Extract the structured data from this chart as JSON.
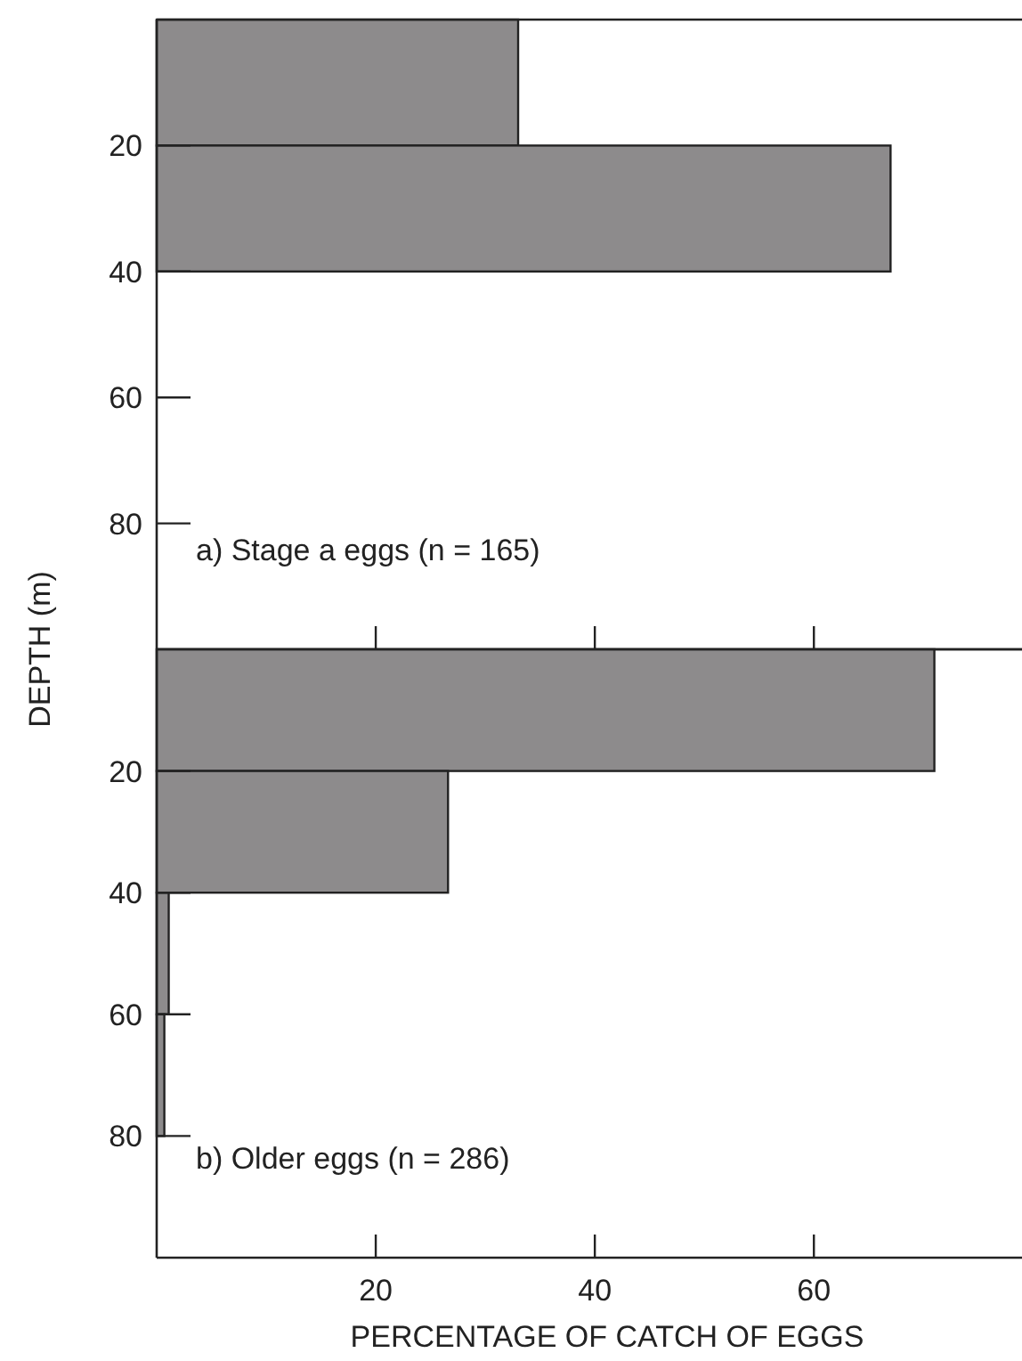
{
  "chart_data": [
    {
      "type": "histogram",
      "orientation": "horizontal",
      "bins": [
        0,
        20,
        40,
        60,
        80,
        100
      ],
      "values": [
        33,
        67,
        0,
        0,
        0
      ],
      "color": "#8d8b8c",
      "ylim": [
        100,
        0
      ],
      "yticks": [
        20,
        40,
        60,
        80
      ],
      "xlim": [
        0,
        79
      ],
      "xticks": [
        {
          "value": 20,
          "label": null
        },
        {
          "value": 40,
          "label": null
        },
        {
          "value": 60,
          "label": null
        }
      ],
      "tick_labels": "y",
      "ylabel": "DEPTH (m)",
      "annotations": [
        "a) Stage a eggs (n = 165)"
      ],
      "grid": false
    },
    {
      "type": "histogram",
      "orientation": "horizontal",
      "bins": [
        0,
        20,
        40,
        60,
        80,
        100
      ],
      "values": [
        71,
        26.6,
        1.1,
        0.7,
        0
      ],
      "color": "#8d8b8c",
      "ylim": [
        100,
        0
      ],
      "yticks": [
        20,
        40,
        60,
        80
      ],
      "xlim": [
        0,
        79
      ],
      "xticks": [
        20,
        40,
        60
      ],
      "xlabel": "PERCENTAGE OF CATCH OF EGGS",
      "annotations": [
        "b) Older eggs (n = 286)"
      ],
      "grid": false
    }
  ]
}
